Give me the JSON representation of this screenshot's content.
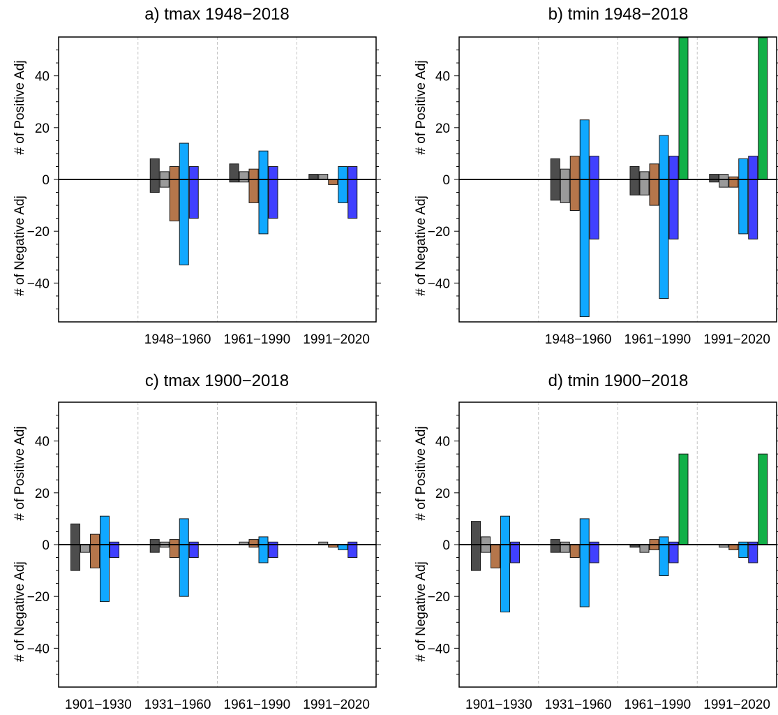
{
  "chart_data": [
    {
      "type": "bar",
      "title": "a) tmax 1948−2018",
      "ylabel_top": "# of Positive Adj",
      "ylabel_bottom": "# of Negative Adj",
      "ylim": [
        -55,
        55
      ],
      "yticks": [
        -40,
        -20,
        0,
        20,
        40
      ],
      "ytick_labels": [
        "−40",
        "−20",
        "0",
        "20",
        "40"
      ],
      "categories": [
        "",
        "1948−1960",
        "1961−1990",
        "1991−2020"
      ],
      "series": [
        {
          "color": "#4d4d4d",
          "positive": [
            0,
            8,
            6,
            2
          ],
          "negative": [
            0,
            -5,
            -1,
            0
          ]
        },
        {
          "color": "#9a9a9a",
          "positive": [
            0,
            3,
            3,
            2
          ],
          "negative": [
            0,
            -3,
            -1,
            0
          ]
        },
        {
          "color": "#b5764b",
          "positive": [
            0,
            5,
            4,
            0
          ],
          "negative": [
            0,
            -16,
            -9,
            -2
          ]
        },
        {
          "color": "#10a8ff",
          "positive": [
            0,
            14,
            11,
            5
          ],
          "negative": [
            0,
            -33,
            -21,
            -9
          ]
        },
        {
          "color": "#4040ff",
          "positive": [
            0,
            5,
            5,
            5
          ],
          "negative": [
            0,
            -15,
            -15,
            -15
          ]
        },
        {
          "color": "#12b048",
          "positive": [
            0,
            0,
            0,
            0
          ],
          "negative": [
            0,
            0,
            0,
            0
          ]
        }
      ]
    },
    {
      "type": "bar",
      "title": "b) tmin 1948−2018",
      "ylabel_top": "# of Positive Adj",
      "ylabel_bottom": "# of Negative Adj",
      "ylim": [
        -55,
        55
      ],
      "yticks": [
        -40,
        -20,
        0,
        20,
        40
      ],
      "ytick_labels": [
        "−40",
        "−20",
        "0",
        "20",
        "40"
      ],
      "categories": [
        "",
        "1948−1960",
        "1961−1990",
        "1991−2020"
      ],
      "series": [
        {
          "color": "#4d4d4d",
          "positive": [
            0,
            8,
            5,
            2
          ],
          "negative": [
            0,
            -8,
            -6,
            -1
          ]
        },
        {
          "color": "#9a9a9a",
          "positive": [
            0,
            4,
            3,
            2
          ],
          "negative": [
            0,
            -9,
            -6,
            -3
          ]
        },
        {
          "color": "#b5764b",
          "positive": [
            0,
            9,
            6,
            1
          ],
          "negative": [
            0,
            -12,
            -10,
            -3
          ]
        },
        {
          "color": "#10a8ff",
          "positive": [
            0,
            23,
            17,
            8
          ],
          "negative": [
            0,
            -53,
            -46,
            -21
          ]
        },
        {
          "color": "#4040ff",
          "positive": [
            0,
            9,
            9,
            9
          ],
          "negative": [
            0,
            -23,
            -23,
            -23
          ]
        },
        {
          "color": "#12b048",
          "positive": [
            0,
            0,
            55,
            55
          ],
          "negative": [
            0,
            0,
            0,
            0
          ]
        }
      ]
    },
    {
      "type": "bar",
      "title": "c) tmax 1900−2018",
      "ylabel_top": "# of Positive Adj",
      "ylabel_bottom": "# of Negative Adj",
      "ylim": [
        -55,
        55
      ],
      "yticks": [
        -40,
        -20,
        0,
        20,
        40
      ],
      "ytick_labels": [
        "−40",
        "−20",
        "0",
        "20",
        "40"
      ],
      "categories": [
        "1901−1930",
        "1931−1960",
        "1961−1990",
        "1991−2020"
      ],
      "series": [
        {
          "color": "#4d4d4d",
          "positive": [
            8,
            2,
            0,
            0
          ],
          "negative": [
            -10,
            -3,
            0,
            0
          ]
        },
        {
          "color": "#9a9a9a",
          "positive": [
            0,
            1,
            1,
            1
          ],
          "negative": [
            -3,
            -1,
            0,
            0
          ]
        },
        {
          "color": "#b5764b",
          "positive": [
            4,
            2,
            2,
            0
          ],
          "negative": [
            -9,
            -5,
            -1,
            -1
          ]
        },
        {
          "color": "#10a8ff",
          "positive": [
            11,
            10,
            3,
            0
          ],
          "negative": [
            -22,
            -20,
            -7,
            -2
          ]
        },
        {
          "color": "#4040ff",
          "positive": [
            1,
            1,
            1,
            1
          ],
          "negative": [
            -5,
            -5,
            -5,
            -5
          ]
        },
        {
          "color": "#12b048",
          "positive": [
            0,
            0,
            0,
            0
          ],
          "negative": [
            0,
            0,
            0,
            0
          ]
        }
      ]
    },
    {
      "type": "bar",
      "title": "d) tmin 1900−2018",
      "ylabel_top": "# of Positive Adj",
      "ylabel_bottom": "# of Negative Adj",
      "ylim": [
        -55,
        55
      ],
      "yticks": [
        -40,
        -20,
        0,
        20,
        40
      ],
      "ytick_labels": [
        "−40",
        "−20",
        "0",
        "20",
        "40"
      ],
      "categories": [
        "1901−1930",
        "1931−1960",
        "1961−1990",
        "1991−2020"
      ],
      "series": [
        {
          "color": "#4d4d4d",
          "positive": [
            9,
            2,
            0,
            0
          ],
          "negative": [
            -10,
            -3,
            -1,
            0
          ]
        },
        {
          "color": "#9a9a9a",
          "positive": [
            3,
            1,
            0,
            0
          ],
          "negative": [
            -3,
            -3,
            -3,
            -1
          ]
        },
        {
          "color": "#b5764b",
          "positive": [
            0,
            0,
            2,
            0
          ],
          "negative": [
            -9,
            -5,
            -2,
            -2
          ]
        },
        {
          "color": "#10a8ff",
          "positive": [
            11,
            10,
            3,
            1
          ],
          "negative": [
            -26,
            -24,
            -12,
            -5
          ]
        },
        {
          "color": "#4040ff",
          "positive": [
            1,
            1,
            1,
            1
          ],
          "negative": [
            -7,
            -7,
            -7,
            -7
          ]
        },
        {
          "color": "#12b048",
          "positive": [
            0,
            0,
            35,
            35
          ],
          "negative": [
            0,
            0,
            0,
            0
          ]
        }
      ]
    }
  ]
}
